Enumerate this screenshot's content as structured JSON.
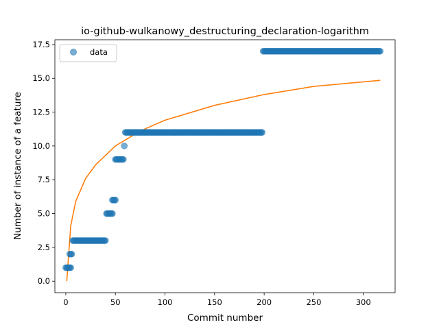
{
  "chart_data": {
    "type": "scatter",
    "title": "io-github-wulkanowy_destructuring_declaration-logarithm",
    "xlabel": "Commit number",
    "ylabel": "Number of instance of a feature",
    "xlim": [
      -11,
      332
    ],
    "ylim": [
      -0.85,
      17.85
    ],
    "xticks": [
      0,
      50,
      100,
      150,
      200,
      250,
      300
    ],
    "yticks": [
      0.0,
      2.5,
      5.0,
      7.5,
      10.0,
      12.5,
      15.0,
      17.5
    ],
    "xtick_labels": [
      "0",
      "50",
      "100",
      "150",
      "200",
      "250",
      "300"
    ],
    "ytick_labels": [
      "0.0",
      "2.5",
      "5.0",
      "7.5",
      "10.0",
      "12.5",
      "15.0",
      "17.5"
    ],
    "grid": false,
    "legend": {
      "position": "upper-left",
      "entries": [
        "data"
      ]
    },
    "colors": {
      "data": "#1f77b4",
      "fit": "#ff7f0e"
    },
    "series": [
      {
        "name": "data",
        "kind": "scatter",
        "segments": [
          {
            "x_from": 0,
            "x_to": 5,
            "y": 1
          },
          {
            "x_from": 4,
            "x_to": 6,
            "y": 2
          },
          {
            "x_from": 7,
            "x_to": 40,
            "y": 3
          },
          {
            "x_from": 41,
            "x_to": 47,
            "y": 5
          },
          {
            "x_from": 47,
            "x_to": 50,
            "y": 6
          },
          {
            "x_from": 50,
            "x_to": 58,
            "y": 9
          },
          {
            "x_from": 59,
            "x_to": 59,
            "y": 10
          },
          {
            "x_from": 60,
            "x_to": 198,
            "y": 11
          },
          {
            "x_from": 199,
            "x_to": 317,
            "y": 17
          }
        ]
      },
      {
        "kind": "line",
        "model": "logarithmic",
        "x_range": [
          1,
          317
        ],
        "points": [
          [
            1,
            0
          ],
          [
            5,
            4.1
          ],
          [
            10,
            5.9
          ],
          [
            20,
            7.6
          ],
          [
            30,
            8.6
          ],
          [
            50,
            10.0
          ],
          [
            75,
            11.1
          ],
          [
            100,
            11.9
          ],
          [
            150,
            13.0
          ],
          [
            200,
            13.8
          ],
          [
            250,
            14.4
          ],
          [
            317,
            14.85
          ]
        ]
      }
    ]
  }
}
